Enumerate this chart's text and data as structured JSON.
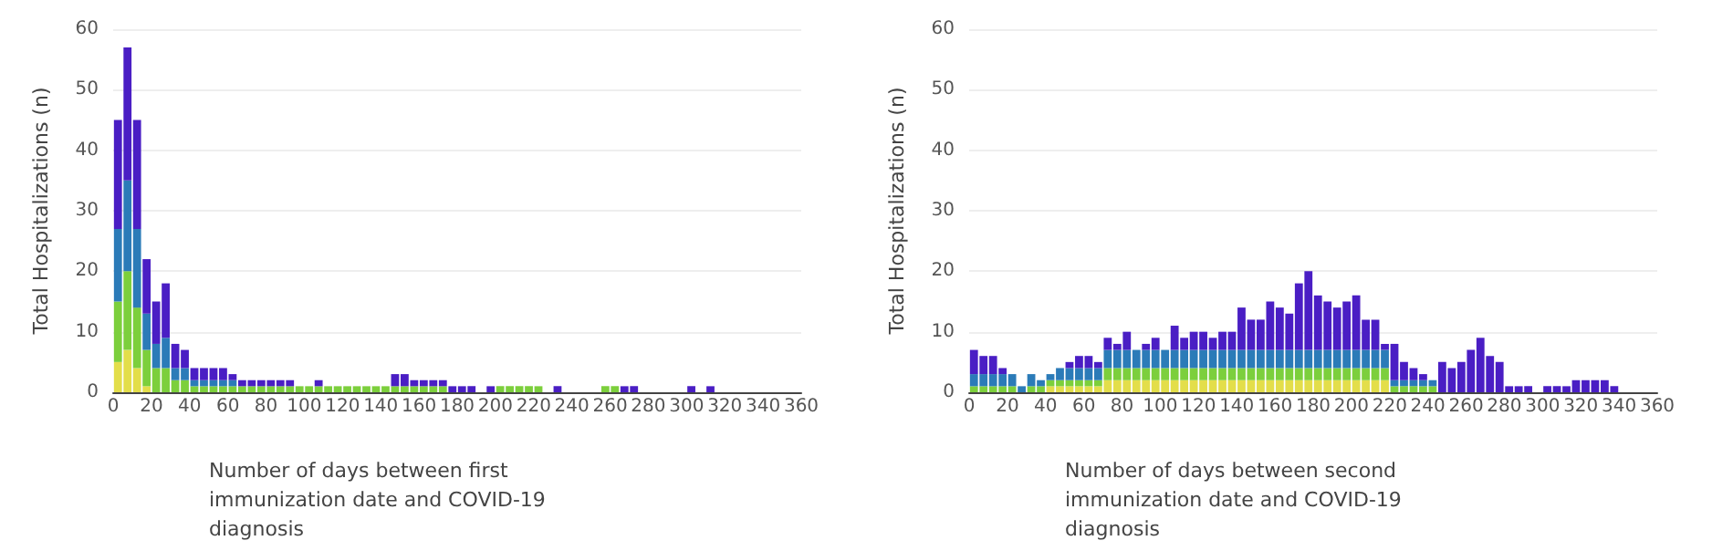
{
  "chart_data": [
    {
      "type": "bar",
      "stacked": true,
      "xlabel": "Number of days between first immunization date and COVID-19 diagnosis",
      "ylabel": "Total Hospitalizations (n)",
      "x": [
        2.5,
        7.5,
        12.5,
        17.5,
        22.5,
        27.5,
        32.5,
        37.5,
        42.5,
        47.5,
        52.5,
        57.5,
        62.5,
        67.5,
        72.5,
        77.5,
        82.5,
        87.5,
        92.5,
        97.5,
        102.5,
        107.5,
        112.5,
        117.5,
        122.5,
        127.5,
        132.5,
        137.5,
        142.5,
        147.5,
        152.5,
        157.5,
        162.5,
        167.5,
        172.5,
        177.5,
        182.5,
        187.5,
        192.5,
        197.5,
        202.5,
        207.5,
        212.5,
        217.5,
        222.5,
        227.5,
        232.5,
        237.5,
        242.5,
        247.5,
        252.5,
        257.5,
        262.5,
        267.5,
        272.5,
        277.5,
        282.5,
        287.5,
        292.5,
        297.5,
        302.5,
        307.5,
        312.5,
        317.5,
        322.5,
        327.5,
        332.5,
        337.5,
        342.5,
        347.5,
        352.5,
        357.5
      ],
      "series": [
        {
          "color": "#e3de4a",
          "values": [
            5,
            7,
            4,
            1,
            0,
            0,
            0,
            0,
            0,
            0,
            0,
            0,
            0,
            0,
            0,
            0,
            0,
            0,
            0,
            0,
            0,
            0,
            0,
            0,
            0,
            0,
            0,
            0,
            0,
            0,
            0,
            0,
            0,
            0,
            0,
            0,
            0,
            0,
            0,
            0,
            0,
            0,
            0,
            0,
            0,
            0,
            0,
            0,
            0,
            0,
            0,
            0,
            0,
            0,
            0,
            0,
            0,
            0,
            0,
            0,
            0,
            0,
            0,
            0,
            0,
            0,
            0,
            0,
            0,
            0,
            0,
            0
          ]
        },
        {
          "color": "#7ccf3c",
          "values": [
            10,
            13,
            10,
            6,
            4,
            4,
            2,
            2,
            1,
            1,
            1,
            1,
            1,
            1,
            1,
            1,
            1,
            1,
            1,
            1,
            1,
            1,
            1,
            1,
            1,
            1,
            1,
            1,
            1,
            1,
            1,
            1,
            1,
            1,
            1,
            0,
            0,
            0,
            0,
            0,
            1,
            1,
            1,
            1,
            1,
            0,
            0,
            0,
            0,
            0,
            0,
            1,
            1,
            0,
            0,
            0,
            0,
            0,
            0,
            0,
            0,
            0,
            0,
            0,
            0,
            0,
            0,
            0,
            0,
            0,
            0,
            0
          ]
        },
        {
          "color": "#2b7bb8",
          "values": [
            12,
            15,
            13,
            6,
            4,
            5,
            2,
            2,
            1,
            1,
            1,
            1,
            1,
            0,
            0,
            0,
            0,
            0,
            0,
            0,
            0,
            0,
            0,
            0,
            0,
            0,
            0,
            0,
            0,
            0,
            0,
            0,
            0,
            0,
            0,
            0,
            0,
            0,
            0,
            0,
            0,
            0,
            0,
            0,
            0,
            0,
            0,
            0,
            0,
            0,
            0,
            0,
            0,
            0,
            0,
            0,
            0,
            0,
            0,
            0,
            0,
            0,
            0,
            0,
            0,
            0,
            0,
            0,
            0,
            0,
            0,
            0
          ]
        },
        {
          "color": "#4a1ec4",
          "values": [
            18,
            22,
            18,
            9,
            7,
            9,
            4,
            3,
            2,
            2,
            2,
            2,
            1,
            1,
            1,
            1,
            1,
            1,
            1,
            0,
            0,
            1,
            0,
            0,
            0,
            0,
            0,
            0,
            0,
            2,
            2,
            1,
            1,
            1,
            1,
            1,
            1,
            1,
            0,
            1,
            0,
            0,
            0,
            0,
            0,
            0,
            1,
            0,
            0,
            0,
            0,
            0,
            0,
            1,
            1,
            0,
            0,
            0,
            0,
            0,
            1,
            0,
            1,
            0,
            0,
            0,
            0,
            0,
            0,
            0,
            0,
            0
          ]
        }
      ],
      "xlim": [
        0,
        360
      ],
      "xticks": [
        0,
        20,
        40,
        60,
        80,
        100,
        120,
        140,
        160,
        180,
        200,
        220,
        240,
        260,
        280,
        300,
        320,
        340,
        360
      ],
      "ylim": [
        0,
        60
      ],
      "yticks": [
        0,
        10,
        20,
        30,
        40,
        50,
        60
      ],
      "grid": "y"
    },
    {
      "type": "bar",
      "stacked": true,
      "xlabel": "Number of days between second immunization date and COVID-19 diagnosis",
      "ylabel": "Total Hospitalizations (n)",
      "x": [
        2.5,
        7.5,
        12.5,
        17.5,
        22.5,
        27.5,
        32.5,
        37.5,
        42.5,
        47.5,
        52.5,
        57.5,
        62.5,
        67.5,
        72.5,
        77.5,
        82.5,
        87.5,
        92.5,
        97.5,
        102.5,
        107.5,
        112.5,
        117.5,
        122.5,
        127.5,
        132.5,
        137.5,
        142.5,
        147.5,
        152.5,
        157.5,
        162.5,
        167.5,
        172.5,
        177.5,
        182.5,
        187.5,
        192.5,
        197.5,
        202.5,
        207.5,
        212.5,
        217.5,
        222.5,
        227.5,
        232.5,
        237.5,
        242.5,
        247.5,
        252.5,
        257.5,
        262.5,
        267.5,
        272.5,
        277.5,
        282.5,
        287.5,
        292.5,
        297.5,
        302.5,
        307.5,
        312.5,
        317.5,
        322.5,
        327.5,
        332.5,
        337.5,
        342.5,
        347.5,
        352.5,
        357.5
      ],
      "series": [
        {
          "color": "#e3de4a",
          "values": [
            0,
            0,
            0,
            0,
            0,
            0,
            0,
            0,
            1,
            1,
            1,
            1,
            1,
            1,
            2,
            2,
            2,
            2,
            2,
            2,
            2,
            2,
            2,
            2,
            2,
            2,
            2,
            2,
            2,
            2,
            2,
            2,
            2,
            2,
            2,
            2,
            2,
            2,
            2,
            2,
            2,
            2,
            2,
            2,
            0,
            0,
            0,
            0,
            0,
            0,
            0,
            0,
            0,
            0,
            0,
            0,
            0,
            0,
            0,
            0,
            0,
            0,
            0,
            0,
            0,
            0,
            0,
            0,
            0,
            0,
            0,
            0
          ]
        },
        {
          "color": "#7ccf3c",
          "values": [
            1,
            1,
            1,
            1,
            1,
            0,
            1,
            1,
            1,
            1,
            1,
            1,
            1,
            1,
            2,
            2,
            2,
            2,
            2,
            2,
            2,
            2,
            2,
            2,
            2,
            2,
            2,
            2,
            2,
            2,
            2,
            2,
            2,
            2,
            2,
            2,
            2,
            2,
            2,
            2,
            2,
            2,
            2,
            2,
            1,
            1,
            1,
            1,
            1,
            0,
            0,
            0,
            0,
            0,
            0,
            0,
            0,
            0,
            0,
            0,
            0,
            0,
            0,
            0,
            0,
            0,
            0,
            0,
            0,
            0,
            0,
            0
          ]
        },
        {
          "color": "#2b7bb8",
          "values": [
            2,
            2,
            2,
            2,
            2,
            1,
            2,
            1,
            1,
            2,
            2,
            2,
            2,
            2,
            3,
            3,
            3,
            3,
            3,
            3,
            3,
            3,
            3,
            3,
            3,
            3,
            3,
            3,
            3,
            3,
            3,
            3,
            3,
            3,
            3,
            3,
            3,
            3,
            3,
            3,
            3,
            3,
            3,
            3,
            1,
            1,
            1,
            1,
            1,
            0,
            0,
            0,
            0,
            0,
            0,
            0,
            0,
            0,
            0,
            0,
            0,
            0,
            0,
            0,
            0,
            0,
            0,
            0,
            0,
            0,
            0,
            0
          ]
        },
        {
          "color": "#4a1ec4",
          "values": [
            4,
            3,
            3,
            1,
            0,
            0,
            0,
            0,
            0,
            0,
            1,
            2,
            2,
            1,
            2,
            1,
            3,
            0,
            1,
            2,
            0,
            4,
            2,
            3,
            3,
            2,
            3,
            3,
            7,
            5,
            5,
            8,
            7,
            6,
            11,
            13,
            9,
            8,
            7,
            8,
            9,
            5,
            5,
            1,
            6,
            3,
            2,
            1,
            0,
            5,
            4,
            5,
            7,
            9,
            6,
            5,
            1,
            1,
            1,
            0,
            1,
            1,
            1,
            2,
            2,
            2,
            2,
            1,
            0,
            0,
            0,
            0
          ]
        }
      ],
      "xlim": [
        0,
        360
      ],
      "xticks": [
        0,
        20,
        40,
        60,
        80,
        100,
        120,
        140,
        160,
        180,
        200,
        220,
        240,
        260,
        280,
        300,
        320,
        340,
        360
      ],
      "ylim": [
        0,
        60
      ],
      "yticks": [
        0,
        10,
        20,
        30,
        40,
        50,
        60
      ],
      "grid": "y"
    }
  ]
}
